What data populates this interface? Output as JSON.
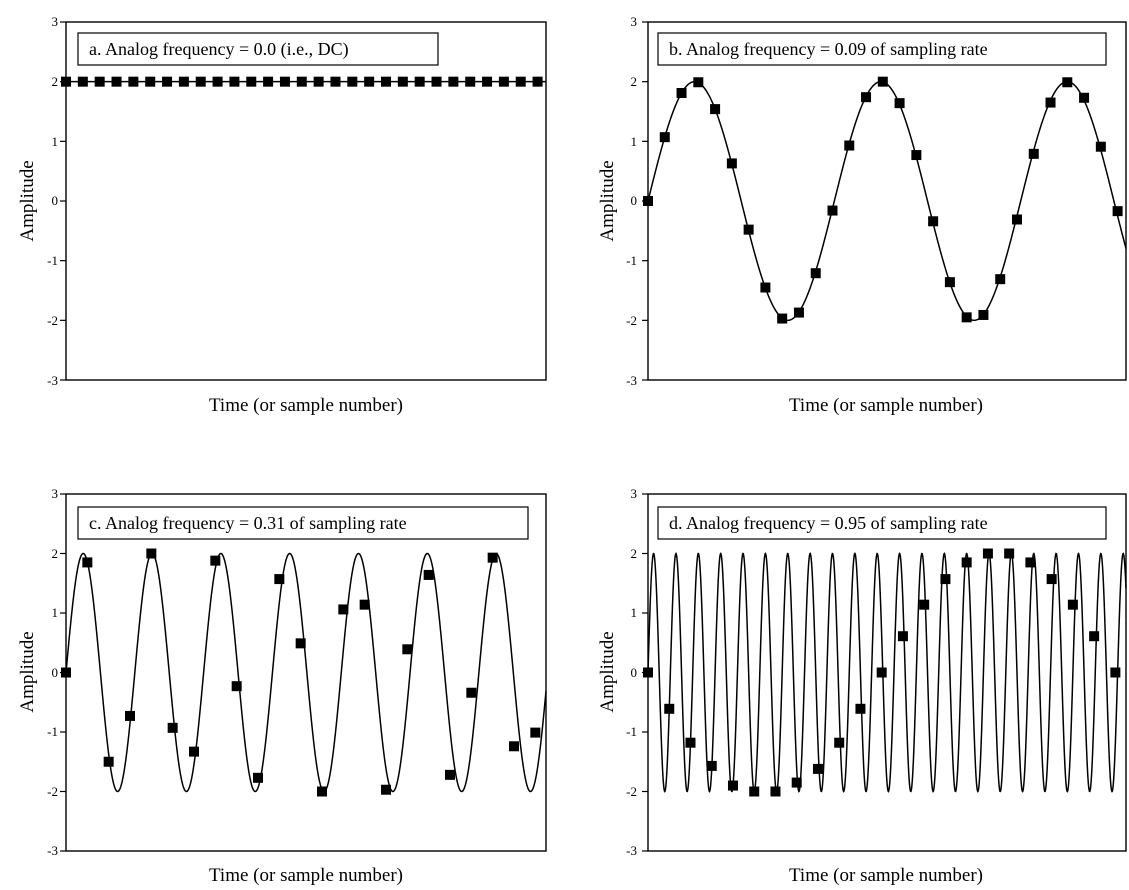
{
  "chart_data": [
    {
      "type": "line",
      "title": "a.  Analog frequency = 0.0  (i.e., DC)",
      "xlabel": "Time (or sample number)",
      "ylabel": "Amplitude",
      "ylim": [
        -3,
        3
      ],
      "yticks": [
        "3",
        "2",
        "1",
        "0",
        "-1",
        "-2",
        "-3"
      ],
      "grid": false,
      "x_range_samples": [
        0,
        28.5
      ],
      "analog": {
        "amplitude": 2,
        "frequency": 0.0,
        "phase_deg": 90
      },
      "samples": {
        "x": [
          0,
          1,
          2,
          3,
          4,
          5,
          6,
          7,
          8,
          9,
          10,
          11,
          12,
          13,
          14,
          15,
          16,
          17,
          18,
          19,
          20,
          21,
          22,
          23,
          24,
          25,
          26,
          27,
          28
        ],
        "y": [
          2,
          2,
          2,
          2,
          2,
          2,
          2,
          2,
          2,
          2,
          2,
          2,
          2,
          2,
          2,
          2,
          2,
          2,
          2,
          2,
          2,
          2,
          2,
          2,
          2,
          2,
          2,
          2,
          2
        ]
      }
    },
    {
      "type": "line",
      "title": "b.  Analog frequency = 0.09 of sampling rate",
      "xlabel": "Time (or sample number)",
      "ylabel": "Amplitude",
      "ylim": [
        -3,
        3
      ],
      "yticks": [
        "3",
        "2",
        "1",
        "0",
        "-1",
        "-2",
        "-3"
      ],
      "grid": false,
      "x_range_samples": [
        0,
        28.5
      ],
      "analog": {
        "amplitude": 2,
        "frequency": 0.09,
        "phase_deg": 0
      },
      "samples": {
        "x": [
          0,
          1,
          2,
          3,
          4,
          5,
          6,
          7,
          8,
          9,
          10,
          11,
          12,
          13,
          14,
          15,
          16,
          17,
          18,
          19,
          20,
          21,
          22,
          23,
          24,
          25,
          26,
          27,
          28
        ],
        "y": [
          0,
          1.07,
          1.81,
          1.99,
          1.54,
          0.63,
          -0.48,
          -1.45,
          -1.97,
          -1.87,
          -1.21,
          -0.16,
          0.93,
          1.74,
          2.0,
          1.64,
          0.77,
          -0.34,
          -1.36,
          -1.95,
          -1.91,
          -1.31,
          -0.31,
          0.79,
          1.65,
          1.99,
          1.73,
          0.91,
          -0.17
        ]
      }
    },
    {
      "type": "line",
      "title": "c.  Analog frequency = 0.31 of sampling rate",
      "xlabel": "Time (or sample number)",
      "ylabel": "Amplitude",
      "ylim": [
        -3,
        3
      ],
      "yticks": [
        "3",
        "2",
        "1",
        "0",
        "-1",
        "-2",
        "-3"
      ],
      "grid": false,
      "x_range_samples": [
        0,
        22.5
      ],
      "analog": {
        "amplitude": 2,
        "frequency": 0.31,
        "phase_deg": 0
      },
      "samples": {
        "x": [
          0,
          1,
          2,
          3,
          4,
          5,
          6,
          7,
          8,
          9,
          10,
          11,
          12,
          13,
          14,
          15,
          16,
          17,
          18,
          19,
          20,
          21,
          22
        ],
        "y": [
          0,
          1.85,
          -1.5,
          -0.73,
          2.0,
          -0.93,
          -1.33,
          1.88,
          -0.23,
          -1.77,
          1.57,
          0.49,
          -2.0,
          1.06,
          1.14,
          -1.97,
          0.39,
          1.64,
          -1.72,
          -0.34,
          1.93,
          -1.24,
          -1.01
        ]
      }
    },
    {
      "type": "line",
      "title": "d.  Analog frequency = 0.95 of sampling rate",
      "xlabel": "Time (or sample number)",
      "ylabel": "Amplitude",
      "ylim": [
        -3,
        3
      ],
      "yticks": [
        "3",
        "2",
        "1",
        "0",
        "-1",
        "-2",
        "-3"
      ],
      "grid": false,
      "x_range_samples": [
        0,
        22.5
      ],
      "analog": {
        "amplitude": 2,
        "frequency": 0.95,
        "phase_deg": 0
      },
      "samples": {
        "x": [
          0,
          1,
          2,
          3,
          4,
          5,
          6,
          7,
          8,
          9,
          10,
          11,
          12,
          13,
          14,
          15,
          16,
          17,
          18,
          19,
          20,
          21,
          22
        ],
        "y": [
          0,
          -0.61,
          -1.18,
          -1.57,
          -1.9,
          -2.0,
          -2.0,
          -1.85,
          -1.62,
          -1.18,
          -0.61,
          0,
          0.61,
          1.14,
          1.57,
          1.85,
          2.0,
          2.0,
          1.85,
          1.57,
          1.14,
          0.61,
          0
        ]
      }
    }
  ]
}
